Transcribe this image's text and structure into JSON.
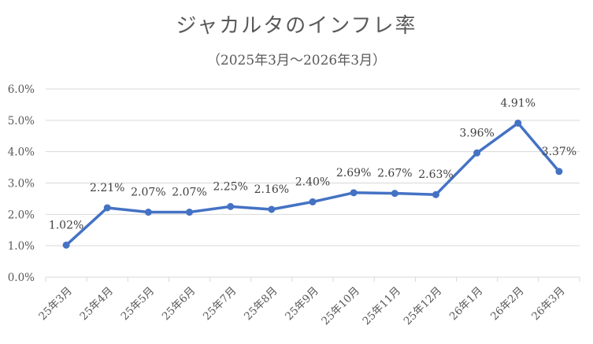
{
  "chart_data": {
    "type": "line",
    "title": "ジャカルタのインフレ率",
    "subtitle": "（2025年3月～2026年3月）",
    "categories": [
      "25年3月",
      "25年4月",
      "25年5月",
      "25年6月",
      "25年7月",
      "25年8月",
      "25年9月",
      "25年10月",
      "25年11月",
      "25年12月",
      "26年1月",
      "26年2月",
      "26年3月"
    ],
    "series": [
      {
        "values": [
          1.02,
          2.21,
          2.07,
          2.07,
          2.25,
          2.16,
          2.4,
          2.69,
          2.67,
          2.63,
          3.96,
          4.91,
          3.37
        ]
      }
    ],
    "data_labels": [
      "1.02%",
      "2.21%",
      "2.07%",
      "2.07%",
      "2.25%",
      "2.16%",
      "2.40%",
      "2.69%",
      "2.67%",
      "2.63%",
      "3.96%",
      "4.91%",
      "3.37%"
    ],
    "y_ticks": [
      0,
      1,
      2,
      3,
      4,
      5,
      6
    ],
    "y_tick_labels": [
      "0.0%",
      "1.0%",
      "2.0%",
      "3.0%",
      "4.0%",
      "5.0%",
      "6.0%"
    ],
    "ylim": [
      0,
      6
    ],
    "grid": true,
    "legend": "none",
    "series_color": "#4472c4",
    "grid_color": "#d9d9d9"
  }
}
